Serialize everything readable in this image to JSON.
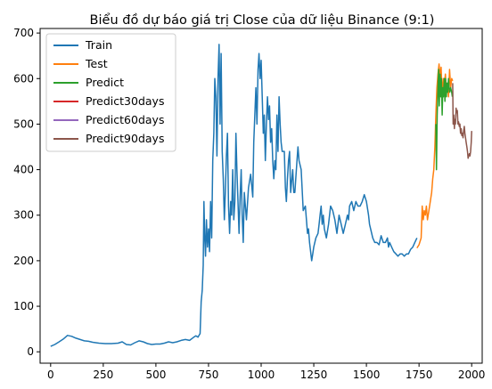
{
  "chart_data": {
    "type": "line",
    "title": "Biểu đồ dự báo giá trị Close của dữ liệu Binance (9:1)",
    "xlabel": "",
    "ylabel": "",
    "xlim": [
      -50,
      2050
    ],
    "ylim": [
      -25,
      710
    ],
    "xticks": [
      0,
      250,
      500,
      750,
      1000,
      1250,
      1500,
      1750,
      2000
    ],
    "yticks": [
      0,
      100,
      200,
      300,
      400,
      500,
      600,
      700
    ],
    "grid": false,
    "legend": "top-left",
    "series": [
      {
        "name": "Train",
        "color": "#1f77b4",
        "points": [
          [
            0,
            12
          ],
          [
            20,
            16
          ],
          [
            40,
            22
          ],
          [
            60,
            28
          ],
          [
            80,
            36
          ],
          [
            100,
            34
          ],
          [
            120,
            30
          ],
          [
            140,
            27
          ],
          [
            160,
            24
          ],
          [
            180,
            23
          ],
          [
            200,
            21
          ],
          [
            230,
            19
          ],
          [
            260,
            18
          ],
          [
            290,
            18
          ],
          [
            320,
            19
          ],
          [
            340,
            22
          ],
          [
            360,
            16
          ],
          [
            380,
            15
          ],
          [
            400,
            20
          ],
          [
            420,
            24
          ],
          [
            440,
            22
          ],
          [
            460,
            18
          ],
          [
            480,
            16
          ],
          [
            500,
            17
          ],
          [
            520,
            17
          ],
          [
            540,
            19
          ],
          [
            560,
            22
          ],
          [
            580,
            20
          ],
          [
            600,
            22
          ],
          [
            620,
            25
          ],
          [
            640,
            27
          ],
          [
            660,
            25
          ],
          [
            680,
            32
          ],
          [
            690,
            35
          ],
          [
            700,
            32
          ],
          [
            710,
            40
          ],
          [
            715,
            110
          ],
          [
            720,
            135
          ],
          [
            725,
            190
          ],
          [
            728,
            330
          ],
          [
            732,
            250
          ],
          [
            736,
            210
          ],
          [
            740,
            290
          ],
          [
            745,
            230
          ],
          [
            750,
            270
          ],
          [
            755,
            220
          ],
          [
            760,
            330
          ],
          [
            765,
            250
          ],
          [
            770,
            420
          ],
          [
            775,
            480
          ],
          [
            780,
            600
          ],
          [
            785,
            560
          ],
          [
            790,
            430
          ],
          [
            795,
            600
          ],
          [
            800,
            675
          ],
          [
            805,
            500
          ],
          [
            810,
            655
          ],
          [
            815,
            440
          ],
          [
            820,
            380
          ],
          [
            825,
            290
          ],
          [
            830,
            350
          ],
          [
            835,
            430
          ],
          [
            840,
            480
          ],
          [
            845,
            320
          ],
          [
            850,
            260
          ],
          [
            855,
            330
          ],
          [
            860,
            300
          ],
          [
            865,
            400
          ],
          [
            870,
            290
          ],
          [
            875,
            330
          ],
          [
            880,
            480
          ],
          [
            885,
            400
          ],
          [
            890,
            330
          ],
          [
            895,
            260
          ],
          [
            900,
            340
          ],
          [
            905,
            400
          ],
          [
            910,
            300
          ],
          [
            915,
            240
          ],
          [
            920,
            350
          ],
          [
            930,
            290
          ],
          [
            940,
            360
          ],
          [
            950,
            390
          ],
          [
            960,
            340
          ],
          [
            965,
            460
          ],
          [
            970,
            520
          ],
          [
            975,
            580
          ],
          [
            980,
            500
          ],
          [
            985,
            620
          ],
          [
            990,
            655
          ],
          [
            995,
            600
          ],
          [
            1000,
            640
          ],
          [
            1005,
            560
          ],
          [
            1010,
            480
          ],
          [
            1015,
            520
          ],
          [
            1020,
            420
          ],
          [
            1025,
            500
          ],
          [
            1030,
            560
          ],
          [
            1035,
            510
          ],
          [
            1040,
            540
          ],
          [
            1045,
            460
          ],
          [
            1050,
            490
          ],
          [
            1055,
            420
          ],
          [
            1060,
            380
          ],
          [
            1065,
            420
          ],
          [
            1070,
            400
          ],
          [
            1075,
            520
          ],
          [
            1080,
            440
          ],
          [
            1085,
            560
          ],
          [
            1090,
            500
          ],
          [
            1095,
            460
          ],
          [
            1100,
            440
          ],
          [
            1110,
            440
          ],
          [
            1115,
            360
          ],
          [
            1120,
            330
          ],
          [
            1125,
            380
          ],
          [
            1130,
            420
          ],
          [
            1135,
            440
          ],
          [
            1140,
            350
          ],
          [
            1150,
            400
          ],
          [
            1155,
            350
          ],
          [
            1160,
            350
          ],
          [
            1170,
            420
          ],
          [
            1175,
            450
          ],
          [
            1180,
            420
          ],
          [
            1190,
            400
          ],
          [
            1200,
            310
          ],
          [
            1210,
            320
          ],
          [
            1220,
            260
          ],
          [
            1225,
            270
          ],
          [
            1230,
            240
          ],
          [
            1235,
            220
          ],
          [
            1240,
            200
          ],
          [
            1245,
            215
          ],
          [
            1250,
            230
          ],
          [
            1260,
            250
          ],
          [
            1270,
            260
          ],
          [
            1275,
            280
          ],
          [
            1280,
            300
          ],
          [
            1285,
            320
          ],
          [
            1290,
            280
          ],
          [
            1295,
            300
          ],
          [
            1300,
            270
          ],
          [
            1310,
            250
          ],
          [
            1320,
            280
          ],
          [
            1330,
            320
          ],
          [
            1340,
            310
          ],
          [
            1350,
            290
          ],
          [
            1360,
            260
          ],
          [
            1370,
            300
          ],
          [
            1380,
            280
          ],
          [
            1390,
            260
          ],
          [
            1400,
            280
          ],
          [
            1410,
            300
          ],
          [
            1415,
            290
          ],
          [
            1420,
            320
          ],
          [
            1430,
            330
          ],
          [
            1440,
            310
          ],
          [
            1450,
            330
          ],
          [
            1460,
            320
          ],
          [
            1470,
            320
          ],
          [
            1480,
            330
          ],
          [
            1490,
            345
          ],
          [
            1500,
            330
          ],
          [
            1510,
            300
          ],
          [
            1515,
            280
          ],
          [
            1520,
            270
          ],
          [
            1530,
            250
          ],
          [
            1540,
            240
          ],
          [
            1550,
            240
          ],
          [
            1560,
            235
          ],
          [
            1570,
            255
          ],
          [
            1580,
            240
          ],
          [
            1590,
            240
          ],
          [
            1600,
            250
          ],
          [
            1605,
            230
          ],
          [
            1610,
            240
          ],
          [
            1620,
            230
          ],
          [
            1630,
            220
          ],
          [
            1640,
            215
          ],
          [
            1650,
            210
          ],
          [
            1660,
            215
          ],
          [
            1670,
            215
          ],
          [
            1680,
            210
          ],
          [
            1690,
            215
          ],
          [
            1700,
            215
          ],
          [
            1710,
            225
          ],
          [
            1720,
            230
          ],
          [
            1730,
            240
          ],
          [
            1740,
            250
          ]
        ]
      },
      {
        "name": "Test",
        "color": "#ff7f0e",
        "points": [
          [
            1740,
            228
          ],
          [
            1750,
            235
          ],
          [
            1760,
            250
          ],
          [
            1765,
            320
          ],
          [
            1770,
            290
          ],
          [
            1775,
            310
          ],
          [
            1780,
            300
          ],
          [
            1785,
            320
          ],
          [
            1790,
            290
          ],
          [
            1800,
            320
          ],
          [
            1810,
            350
          ],
          [
            1815,
            380
          ],
          [
            1820,
            400
          ],
          [
            1825,
            450
          ],
          [
            1830,
            520
          ],
          [
            1835,
            580
          ],
          [
            1840,
            610
          ],
          [
            1845,
            632
          ],
          [
            1850,
            600
          ],
          [
            1855,
            625
          ],
          [
            1860,
            560
          ],
          [
            1865,
            600
          ],
          [
            1870,
            580
          ],
          [
            1875,
            610
          ],
          [
            1880,
            570
          ],
          [
            1885,
            590
          ],
          [
            1890,
            560
          ],
          [
            1895,
            620
          ],
          [
            1900,
            580
          ],
          [
            1905,
            600
          ],
          [
            1910,
            595
          ]
        ]
      },
      {
        "name": "Predict",
        "color": "#2ca02c",
        "points": [
          [
            1830,
            500
          ],
          [
            1833,
            400
          ],
          [
            1836,
            520
          ],
          [
            1840,
            580
          ],
          [
            1843,
            620
          ],
          [
            1846,
            540
          ],
          [
            1850,
            610
          ],
          [
            1853,
            560
          ],
          [
            1856,
            600
          ],
          [
            1860,
            520
          ],
          [
            1863,
            580
          ],
          [
            1866,
            560
          ],
          [
            1870,
            600
          ],
          [
            1873,
            550
          ],
          [
            1876,
            600
          ],
          [
            1880,
            560
          ],
          [
            1883,
            590
          ],
          [
            1886,
            570
          ],
          [
            1890,
            600
          ],
          [
            1893,
            580
          ],
          [
            1896,
            570
          ],
          [
            1900,
            580
          ],
          [
            1905,
            570
          ],
          [
            1908,
            560
          ]
        ]
      },
      {
        "name": "Predict30days",
        "color": "#d62728",
        "points": []
      },
      {
        "name": "Predict60days",
        "color": "#9467bd",
        "points": []
      },
      {
        "name": "Predict90days",
        "color": "#8c564b",
        "points": [
          [
            1910,
            590
          ],
          [
            1912,
            500
          ],
          [
            1915,
            520
          ],
          [
            1918,
            490
          ],
          [
            1920,
            510
          ],
          [
            1923,
            500
          ],
          [
            1926,
            535
          ],
          [
            1929,
            525
          ],
          [
            1932,
            530
          ],
          [
            1935,
            500
          ],
          [
            1938,
            505
          ],
          [
            1941,
            495
          ],
          [
            1944,
            500
          ],
          [
            1947,
            480
          ],
          [
            1950,
            490
          ],
          [
            1953,
            475
          ],
          [
            1956,
            480
          ],
          [
            1959,
            470
          ],
          [
            1962,
            485
          ],
          [
            1965,
            495
          ],
          [
            1968,
            480
          ],
          [
            1971,
            470
          ],
          [
            1974,
            460
          ],
          [
            1977,
            450
          ],
          [
            1980,
            440
          ],
          [
            1983,
            425
          ],
          [
            1986,
            430
          ],
          [
            1989,
            435
          ],
          [
            1992,
            430
          ],
          [
            1995,
            440
          ],
          [
            1998,
            460
          ],
          [
            2000,
            485
          ]
        ]
      }
    ]
  }
}
